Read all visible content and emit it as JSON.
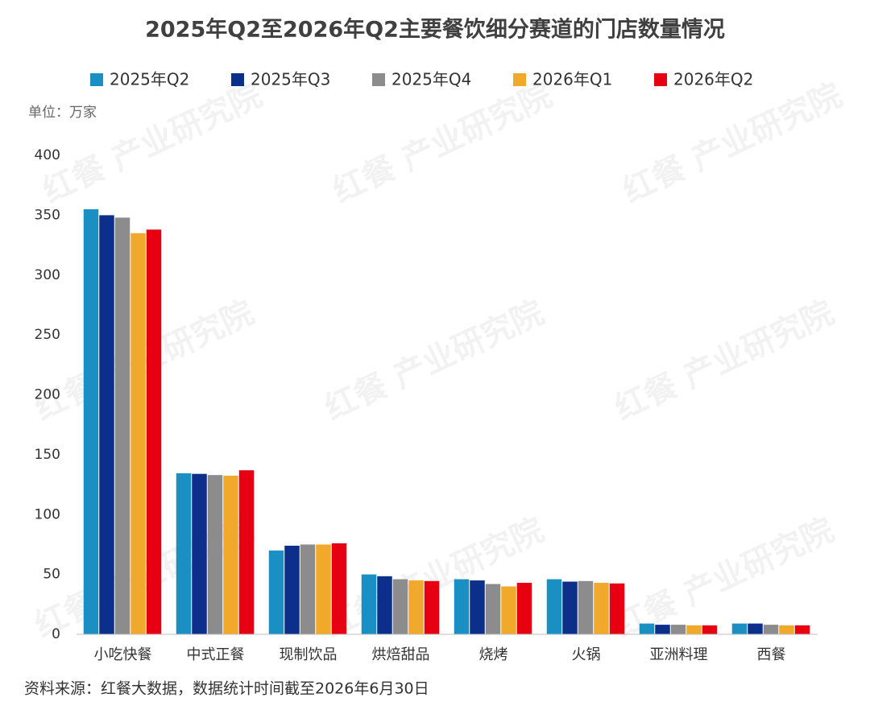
{
  "chart_data": {
    "type": "bar",
    "title": "2025年Q2至2026年Q2主要餐饮细分赛道的门店数量情况",
    "unit": "单位：万家",
    "source": "资料来源：红餐大数据，数据统计时间截至2026年6月30日",
    "watermark": "红餐 产业研究院",
    "categories": [
      "小吃快餐",
      "中式正餐",
      "现制饮品",
      "烘焙甜品",
      "烧烤",
      "火锅",
      "亚洲料理",
      "西餐"
    ],
    "series": [
      {
        "name": "2025年Q2",
        "color": "#1a8fc4",
        "values": [
          355,
          134.5,
          70,
          50,
          46,
          46,
          9,
          9
        ]
      },
      {
        "name": "2025年Q3",
        "color": "#0d2f8c",
        "values": [
          350,
          134,
          74,
          48.5,
          45,
          44,
          8,
          9
        ]
      },
      {
        "name": "2025年Q4",
        "color": "#8c8c8c",
        "values": [
          348,
          133,
          75,
          46,
          42,
          44.5,
          8,
          8
        ]
      },
      {
        "name": "2026年Q1",
        "color": "#f0a92b",
        "values": [
          335,
          132.5,
          75,
          45,
          40,
          43,
          7.5,
          7.5
        ]
      },
      {
        "name": "2026年Q2",
        "color": "#e60012",
        "values": [
          338,
          137,
          76,
          44.5,
          43,
          42.5,
          7.5,
          7.5
        ]
      }
    ],
    "ylim": [
      0,
      400
    ],
    "yticks": [
      0,
      50,
      100,
      150,
      200,
      250,
      300,
      350,
      400
    ],
    "grid": false
  }
}
